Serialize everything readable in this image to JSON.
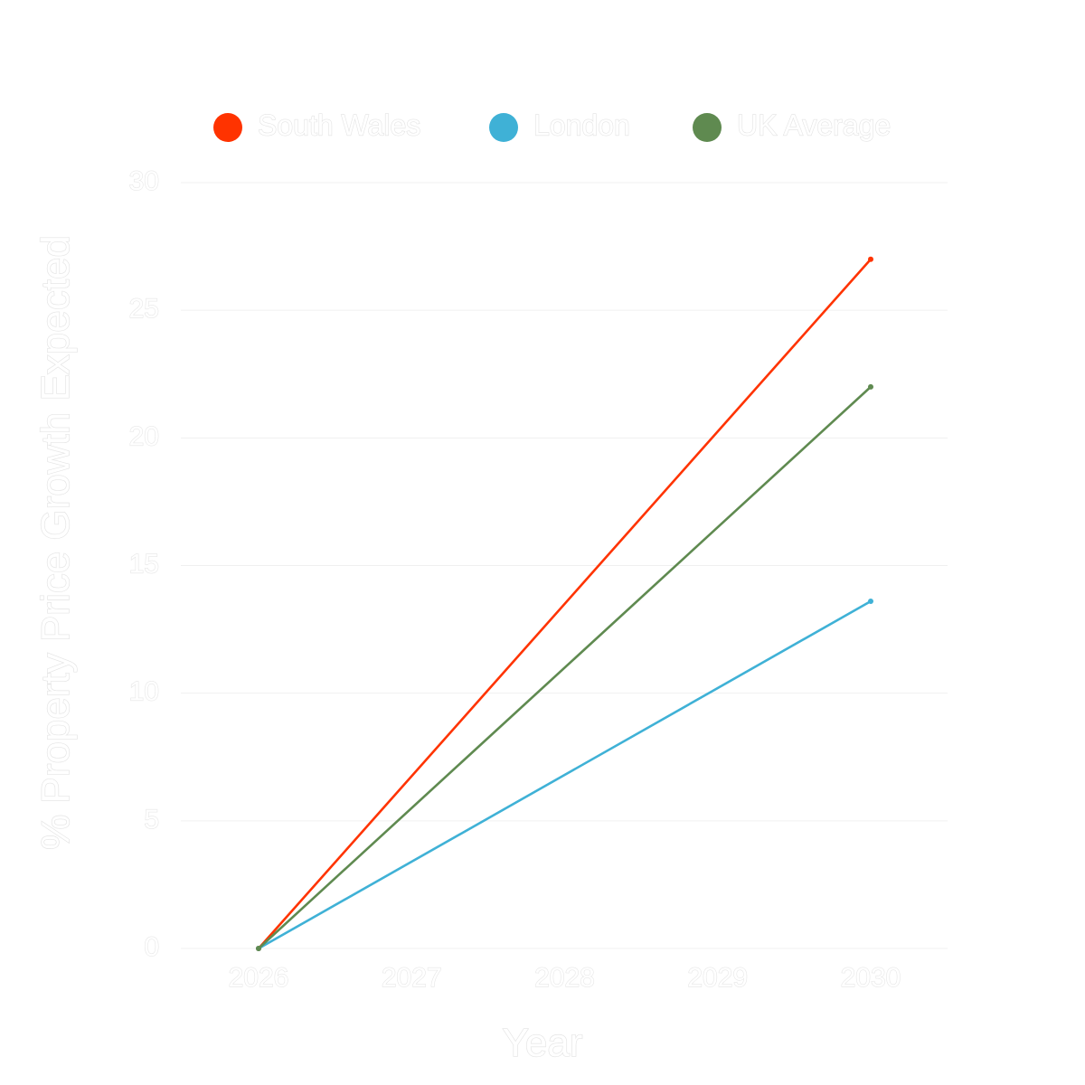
{
  "chart_data": {
    "type": "line",
    "title": "",
    "xlabel": "Year",
    "ylabel": "% Property Price Growth Expected",
    "x": [
      "2026",
      "2027",
      "2028",
      "2029",
      "2030"
    ],
    "ylim": [
      0,
      30
    ],
    "yticks": [
      "0",
      "5",
      "10",
      "15",
      "20",
      "25",
      "30"
    ],
    "grid": true,
    "legend_position": "top",
    "series": [
      {
        "name": "South Wales",
        "color": "#ff3300",
        "points": [
          {
            "x": "2026",
            "y": 0
          },
          {
            "x": "2030",
            "y": 27
          }
        ]
      },
      {
        "name": "London",
        "color": "#3fb1d6",
        "points": [
          {
            "x": "2026",
            "y": 0
          },
          {
            "x": "2030",
            "y": 13.6
          }
        ]
      },
      {
        "name": "UK Average",
        "color": "#5f8a50",
        "points": [
          {
            "x": "2026",
            "y": 0
          },
          {
            "x": "2030",
            "y": 22
          }
        ]
      }
    ]
  }
}
